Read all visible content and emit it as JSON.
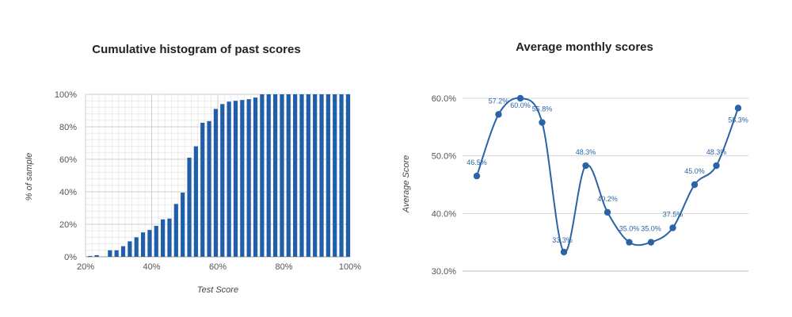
{
  "chart_data": [
    {
      "type": "bar",
      "title": "Cumulative histogram of past scores",
      "xlabel": "Test Score",
      "ylabel": "% of sample",
      "xlim": [
        20,
        100
      ],
      "ylim": [
        0,
        100
      ],
      "x_ticks": [
        "20%",
        "40%",
        "60%",
        "80%",
        "100%"
      ],
      "y_ticks": [
        "0%",
        "20%",
        "40%",
        "60%",
        "80%",
        "100%"
      ],
      "grid": true,
      "color": "#1f5ea8",
      "x": [
        22,
        24,
        26,
        28,
        30,
        32,
        34,
        36,
        38,
        40,
        42,
        44,
        46,
        48,
        50,
        52,
        54,
        56,
        58,
        60,
        62,
        64,
        66,
        68,
        70,
        72,
        74,
        76,
        78,
        80,
        82,
        84,
        86,
        88,
        90,
        92,
        94,
        96,
        98,
        100
      ],
      "values": [
        0.5,
        1,
        0,
        4,
        4,
        6.5,
        9.5,
        12,
        15,
        16.5,
        19,
        23,
        23.5,
        32.5,
        39.5,
        61,
        68,
        82.5,
        83.5,
        91,
        94,
        95.5,
        96,
        96.5,
        97,
        98,
        100,
        100,
        100,
        100,
        100,
        100,
        100,
        100,
        100,
        100,
        100,
        100,
        100,
        100
      ]
    },
    {
      "type": "line",
      "title": "Average monthly scores",
      "xlabel": "",
      "ylabel": "Average Score",
      "ylim": [
        30,
        60
      ],
      "y_ticks": [
        "30.0%",
        "40.0%",
        "50.0%",
        "60.0%"
      ],
      "grid": true,
      "color": "#2a63a6",
      "smooth": true,
      "values": [
        46.5,
        57.2,
        60.0,
        55.8,
        33.3,
        48.3,
        40.2,
        35.0,
        35.0,
        37.5,
        45.0,
        48.3,
        58.3
      ],
      "labels": [
        "46.5%",
        "57.2%",
        "60.0%",
        "55.8%",
        "33.3%",
        "48.3%",
        "40.2%",
        "35.0%",
        "35.0%",
        "37.5%",
        "45.0%",
        "48.3%",
        "58.3%"
      ]
    }
  ]
}
